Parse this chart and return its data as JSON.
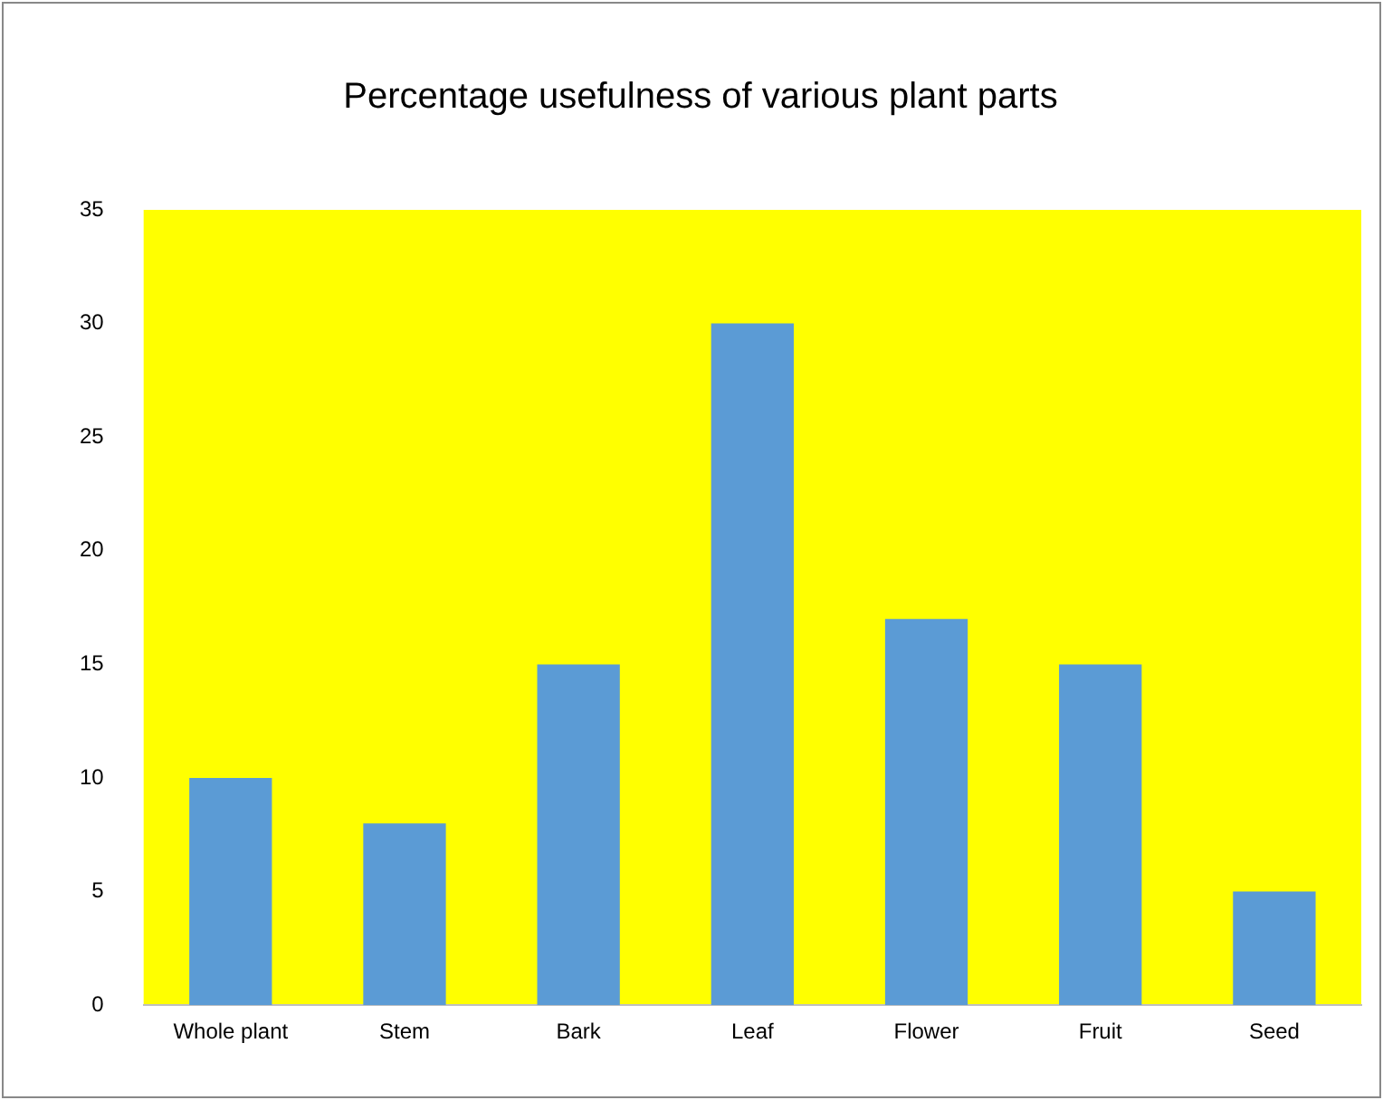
{
  "chart_data": {
    "type": "bar",
    "title": "Percentage usefulness of various plant parts",
    "categories": [
      "Whole plant",
      "Stem",
      "Bark",
      "Leaf",
      "Flower",
      "Fruit",
      "Seed"
    ],
    "values": [
      10,
      8,
      15,
      30,
      17,
      15,
      5
    ],
    "color": "#5b9bd5",
    "ylim": [
      0,
      35
    ],
    "yticks": [
      0,
      5,
      10,
      15,
      20,
      25,
      30,
      35
    ],
    "grid": false,
    "legend": false
  }
}
